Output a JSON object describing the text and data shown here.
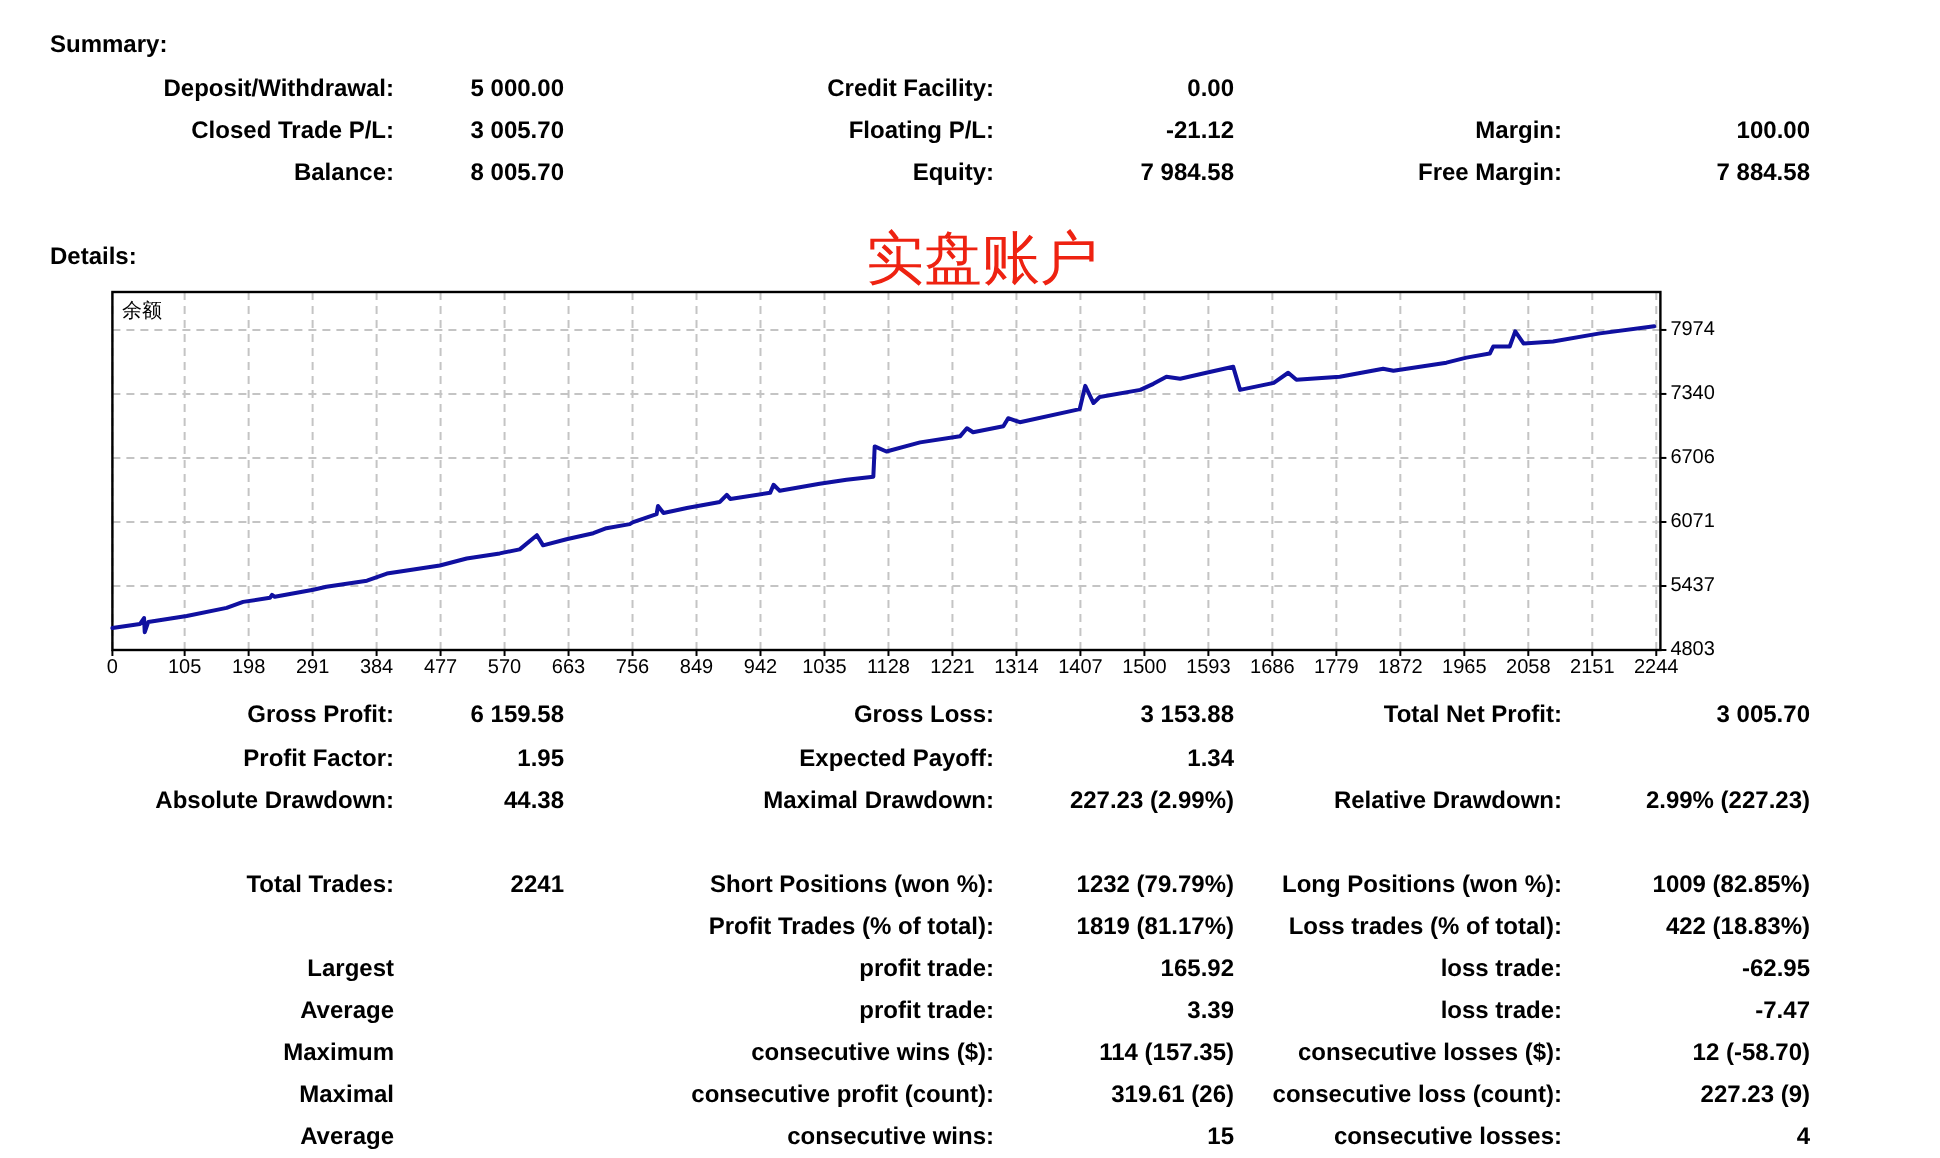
{
  "chart_data": [
    {
      "type": "other",
      "title": "Summary:",
      "annotations": [
        "Deposit/Withdrawal:",
        "5 000.00",
        "Credit Facility:",
        "0.00",
        "Closed Trade P/L:",
        "3 005.70",
        "Floating P/L:",
        "-21.12",
        "Margin:",
        "100.00",
        "Balance:",
        "8 005.70",
        "Equity:",
        "7 984.58",
        "Free Margin:",
        "7 884.58"
      ]
    },
    {
      "type": "line",
      "title": "Details:",
      "subtitle": "实盘账户",
      "x": [
        0,
        40,
        46,
        47,
        52,
        108,
        166,
        190,
        229,
        232,
        236,
        292,
        311,
        370,
        399,
        428,
        476,
        515,
        563,
        592,
        617,
        626,
        660,
        699,
        718,
        752,
        757,
        791,
        793,
        801,
        835,
        883,
        893,
        898,
        956,
        961,
        970,
        1028,
        1067,
        1106,
        1108,
        1125,
        1174,
        1232,
        1242,
        1251,
        1295,
        1302,
        1319,
        1406,
        1414,
        1426,
        1435,
        1494,
        1513,
        1532,
        1552,
        1590,
        1629,
        1639,
        1688,
        1709,
        1721,
        1784,
        1847,
        1862,
        1939,
        1968,
        2002,
        2007,
        2031,
        2039,
        2051,
        2094,
        2162,
        2241
      ],
      "series": [
        {
          "name": "余额",
          "color": "#1010a0",
          "values": [
            5020,
            5060,
            5120,
            4980,
            5080,
            5140,
            5220,
            5280,
            5320,
            5350,
            5330,
            5400,
            5430,
            5490,
            5560,
            5590,
            5640,
            5710,
            5760,
            5800,
            5940,
            5840,
            5900,
            5960,
            6010,
            6050,
            6070,
            6150,
            6230,
            6160,
            6210,
            6270,
            6340,
            6300,
            6360,
            6440,
            6380,
            6450,
            6490,
            6520,
            6820,
            6770,
            6860,
            6920,
            7000,
            6960,
            7020,
            7100,
            7060,
            7190,
            7420,
            7250,
            7310,
            7380,
            7440,
            7510,
            7490,
            7550,
            7610,
            7380,
            7450,
            7550,
            7480,
            7510,
            7590,
            7570,
            7650,
            7700,
            7740,
            7810,
            7810,
            7960,
            7840,
            7860,
            7940,
            8010
          ]
        }
      ],
      "xlim": [
        0,
        2250
      ],
      "xticks": [
        0,
        105,
        198,
        291,
        384,
        477,
        570,
        663,
        756,
        849,
        942,
        1035,
        1128,
        1221,
        1314,
        1407,
        1500,
        1593,
        1686,
        1779,
        1872,
        1965,
        2058,
        2151,
        2244
      ],
      "ylim": [
        4803,
        8350
      ],
      "yticks": [
        4803,
        5437,
        6071,
        6706,
        7340,
        7974
      ],
      "grid": true,
      "legend": "top left"
    },
    {
      "type": "other",
      "annotations": [
        "Gross Profit:",
        "6 159.58",
        "Gross Loss:",
        "3 153.88",
        "Total Net Profit:",
        "3 005.70",
        "Profit Factor:",
        "1.95",
        "Expected Payoff:",
        "1.34",
        "Absolute Drawdown:",
        "44.38",
        "Maximal Drawdown:",
        "227.23 (2.99%)",
        "Relative Drawdown:",
        "2.99% (227.23)",
        "Total Trades:",
        "2241",
        "Short Positions (won %):",
        "1232 (79.79%)",
        "Long Positions (won %):",
        "1009 (82.85%)",
        "Profit Trades (% of total):",
        "1819 (81.17%)",
        "Loss trades (% of total):",
        "422 (18.83%)",
        "Largest",
        "profit trade:",
        "165.92",
        "loss trade:",
        "-62.95",
        "Average",
        "profit trade:",
        "3.39",
        "loss trade:",
        "-7.47",
        "Maximum",
        "consecutive wins ($):",
        "114 (157.35)",
        "consecutive losses ($):",
        "12 (-58.70)",
        "Maximal",
        "consecutive profit (count):",
        "319.61 (26)",
        "consecutive loss (count):",
        "227.23 (9)",
        "Average",
        "consecutive wins:",
        "15",
        "consecutive losses:",
        "4"
      ]
    }
  ]
}
